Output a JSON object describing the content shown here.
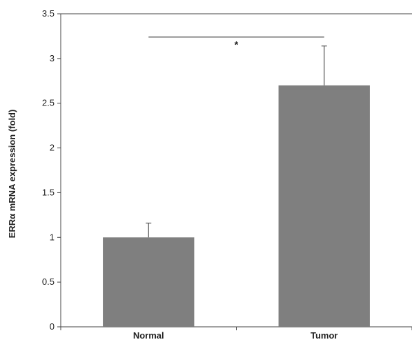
{
  "chart_data": {
    "type": "bar",
    "title": "",
    "xlabel": "",
    "ylabel": "ERRα mRNA expression (fold)",
    "categories": [
      "Normal",
      "Tumor"
    ],
    "values": [
      1.0,
      2.7
    ],
    "error_bars_upper": [
      0.16,
      0.44
    ],
    "ylim": [
      0,
      3.5
    ],
    "yticks": [
      0,
      0.5,
      1,
      1.5,
      2,
      2.5,
      3,
      3.5
    ],
    "ytick_labels": [
      "0",
      "0.5",
      "1",
      "1.5",
      "2",
      "2.5",
      "3",
      "3.5"
    ],
    "grid": false,
    "legend": "none",
    "bar_color": "#7f7f7f",
    "significance": {
      "label": "*",
      "between": [
        "Normal",
        "Tumor"
      ],
      "y": 3.24
    }
  }
}
